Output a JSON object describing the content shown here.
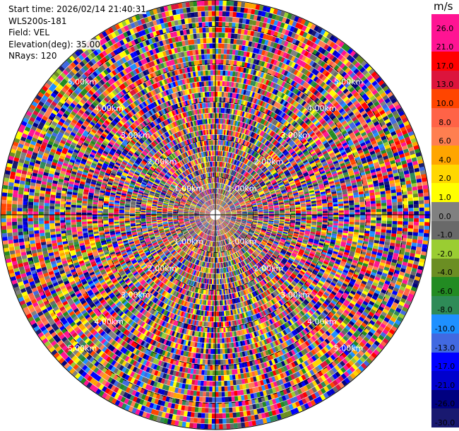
{
  "header": {
    "start_time_label": "Start time:",
    "start_time_value": "2026/02/14 21:40:31",
    "instrument": "WLS200s-181",
    "field_label": "Field:",
    "field_value": "VEL",
    "elevation_label": "Elevation(deg):",
    "elevation_value": "35.00",
    "nrays_label": "NRays:",
    "nrays_value": "120"
  },
  "colorbar": {
    "unit": "m/s",
    "ticks": [
      "26.0",
      "21.0",
      "17.0",
      "13.0",
      "10.0",
      "8.0",
      "6.0",
      "4.0",
      "2.0",
      "1.0",
      "0.0",
      "-1.0",
      "-2.0",
      "-4.0",
      "-6.0",
      "-8.0",
      "-10.0",
      "-13.0",
      "-17.0",
      "-21.0",
      "-26.0",
      "-30.0"
    ],
    "colors": [
      "#ff1493",
      "#ff1493",
      "#ff0000",
      "#dc143c",
      "#ff4500",
      "#ff6347",
      "#ff7f50",
      "#ffa500",
      "#ffd700",
      "#ffff00",
      "#808080",
      "#696969",
      "#9acd32",
      "#6b8e23",
      "#228b22",
      "#2e8b57",
      "#1e90ff",
      "#4169e1",
      "#0000ff",
      "#0000cd",
      "#000080",
      "#191970"
    ]
  },
  "chart_data": {
    "type": "heatmap",
    "projection": "polar (PPI)",
    "field": "VEL",
    "nrays": 120,
    "range_rings_km": [
      1.0,
      2.0,
      3.0,
      4.0,
      5.0
    ],
    "range_labels": [
      "1.00km",
      "2.00km",
      "3.00km",
      "4.00km",
      "5.00km"
    ],
    "max_range_km": 5.7,
    "color_scale": {
      "unit": "m/s",
      "bounds": [
        26.0,
        21.0,
        17.0,
        13.0,
        10.0,
        8.0,
        6.0,
        4.0,
        2.0,
        1.0,
        0.0,
        -1.0,
        -2.0,
        -4.0,
        -6.0,
        -8.0,
        -10.0,
        -13.0,
        -17.0,
        -21.0,
        -26.0,
        -30.0
      ]
    },
    "grid": true,
    "legend": "right"
  }
}
